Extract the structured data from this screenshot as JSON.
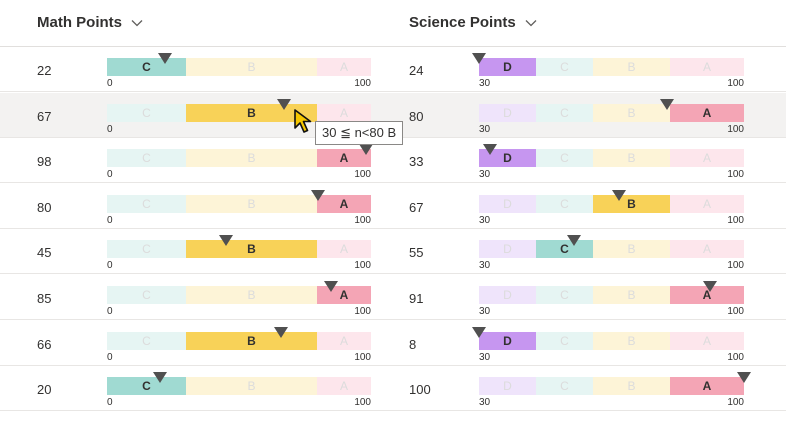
{
  "columns": [
    {
      "id": "math",
      "label": "Math Points",
      "range_labels": [
        "0",
        "100"
      ]
    },
    {
      "id": "science",
      "label": "Science Points",
      "range_labels": [
        "30",
        "100"
      ]
    }
  ],
  "colors": {
    "D": {
      "bright": "#c696f0",
      "dim": "#efe4fb"
    },
    "C": {
      "bright": "#a0dad2",
      "dim": "#e6f5f3"
    },
    "B": {
      "bright": "#f8d258",
      "dim": "#fdf4d7"
    },
    "A": {
      "bright": "#f4a5b5",
      "dim": "#fde6ec"
    },
    "marker": "#505050"
  },
  "rows": [
    {
      "math": {
        "value": "22",
        "grade": "C",
        "level": 0.22
      },
      "science": {
        "value": "24",
        "grade": "D",
        "level": 0.0
      }
    },
    {
      "math": {
        "value": "67",
        "grade": "B",
        "level": 0.67
      },
      "science": {
        "value": "80",
        "grade": "A",
        "level": 0.71
      },
      "selected": true
    },
    {
      "math": {
        "value": "98",
        "grade": "A",
        "level": 0.98
      },
      "science": {
        "value": "33",
        "grade": "D",
        "level": 0.04
      }
    },
    {
      "math": {
        "value": "80",
        "grade": "A",
        "level": 0.8
      },
      "science": {
        "value": "67",
        "grade": "B",
        "level": 0.53
      }
    },
    {
      "math": {
        "value": "45",
        "grade": "B",
        "level": 0.45
      },
      "science": {
        "value": "55",
        "grade": "C",
        "level": 0.36
      }
    },
    {
      "math": {
        "value": "85",
        "grade": "A",
        "level": 0.85
      },
      "science": {
        "value": "91",
        "grade": "A",
        "level": 0.87
      }
    },
    {
      "math": {
        "value": "66",
        "grade": "B",
        "level": 0.66
      },
      "science": {
        "value": "8",
        "grade": "D",
        "level": 0.0
      }
    },
    {
      "math": {
        "value": "20",
        "grade": "C",
        "level": 0.2
      },
      "science": {
        "value": "100",
        "grade": "A",
        "level": 1.0
      }
    }
  ],
  "tooltip": {
    "text": "30 ≦ n<80 B"
  }
}
